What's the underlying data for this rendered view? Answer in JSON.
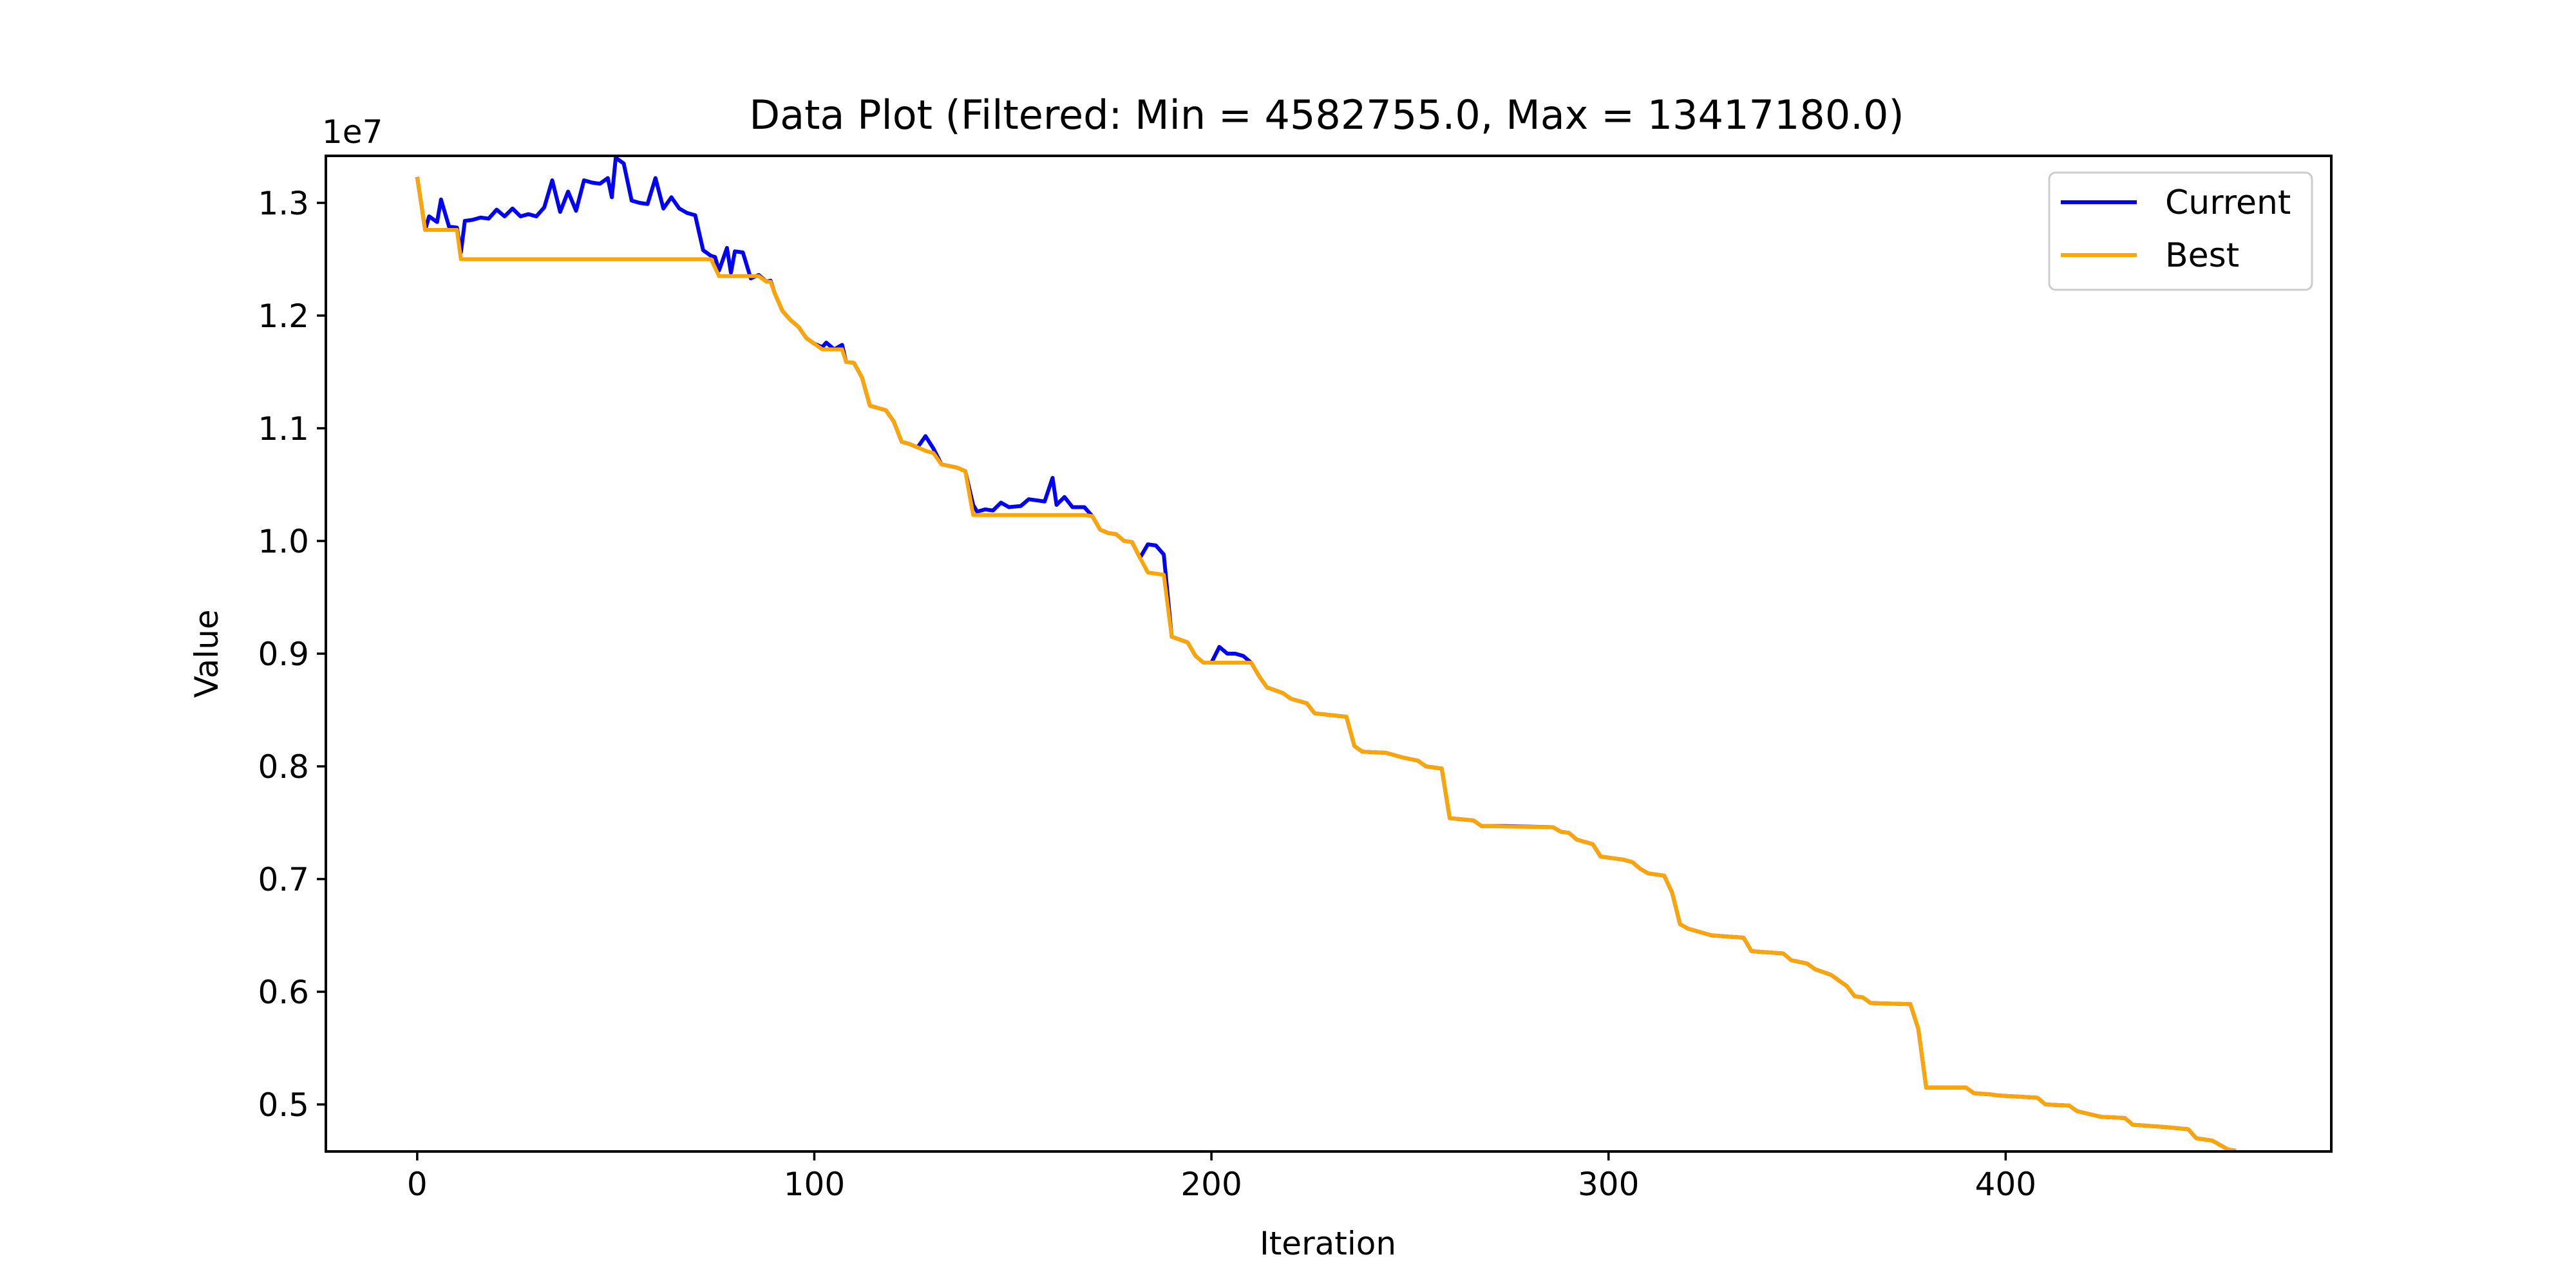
{
  "chart_data": {
    "type": "line",
    "title": "Data Plot (Filtered: Min = 4582755.0, Max = 13417180.0)",
    "xlabel": "Iteration",
    "ylabel": "Value",
    "y_offset_label": "1e7",
    "xlim": [
      -23,
      482
    ],
    "ylim": [
      4582755,
      13417180
    ],
    "x_ticks": [
      0,
      100,
      200,
      300,
      400
    ],
    "x_tick_labels": [
      "0",
      "100",
      "200",
      "300",
      "400"
    ],
    "y_ticks": [
      5000000,
      6000000,
      7000000,
      8000000,
      9000000,
      10000000,
      11000000,
      12000000,
      13000000
    ],
    "y_tick_labels": [
      "0.5",
      "0.6",
      "0.7",
      "0.8",
      "0.9",
      "1.0",
      "1.1",
      "1.2",
      "1.3"
    ],
    "grid": false,
    "legend_position": "top-right",
    "series": [
      {
        "name": "Current",
        "color": "#0000ff",
        "points": [
          [
            0,
            13230000
          ],
          [
            2,
            12760000
          ],
          [
            3,
            12880000
          ],
          [
            5,
            12830000
          ],
          [
            6,
            13030000
          ],
          [
            8,
            12790000
          ],
          [
            10,
            12780000
          ],
          [
            11,
            12560000
          ],
          [
            12,
            12840000
          ],
          [
            14,
            12850000
          ],
          [
            16,
            12870000
          ],
          [
            18,
            12860000
          ],
          [
            20,
            12940000
          ],
          [
            22,
            12880000
          ],
          [
            24,
            12950000
          ],
          [
            26,
            12880000
          ],
          [
            28,
            12900000
          ],
          [
            30,
            12880000
          ],
          [
            32,
            12960000
          ],
          [
            34,
            13200000
          ],
          [
            36,
            12920000
          ],
          [
            38,
            13100000
          ],
          [
            40,
            12930000
          ],
          [
            42,
            13200000
          ],
          [
            44,
            13180000
          ],
          [
            46,
            13170000
          ],
          [
            48,
            13220000
          ],
          [
            49,
            13050000
          ],
          [
            50,
            13400000
          ],
          [
            52,
            13350000
          ],
          [
            54,
            13020000
          ],
          [
            56,
            13000000
          ],
          [
            58,
            12990000
          ],
          [
            60,
            13220000
          ],
          [
            62,
            12950000
          ],
          [
            64,
            13050000
          ],
          [
            66,
            12950000
          ],
          [
            68,
            12910000
          ],
          [
            70,
            12890000
          ],
          [
            72,
            12580000
          ],
          [
            74,
            12530000
          ],
          [
            75,
            12520000
          ],
          [
            76,
            12400000
          ],
          [
            78,
            12600000
          ],
          [
            79,
            12380000
          ],
          [
            80,
            12570000
          ],
          [
            82,
            12560000
          ],
          [
            84,
            12330000
          ],
          [
            86,
            12360000
          ],
          [
            88,
            12300000
          ],
          [
            89,
            12310000
          ],
          [
            90,
            12200000
          ],
          [
            92,
            12040000
          ],
          [
            94,
            11960000
          ],
          [
            96,
            11900000
          ],
          [
            98,
            11800000
          ],
          [
            100,
            11750000
          ],
          [
            102,
            11720000
          ],
          [
            103,
            11760000
          ],
          [
            105,
            11700000
          ],
          [
            107,
            11740000
          ],
          [
            108,
            11590000
          ],
          [
            110,
            11580000
          ],
          [
            112,
            11450000
          ],
          [
            114,
            11200000
          ],
          [
            118,
            11160000
          ],
          [
            120,
            11060000
          ],
          [
            122,
            10880000
          ],
          [
            124,
            10860000
          ],
          [
            126,
            10830000
          ],
          [
            128,
            10930000
          ],
          [
            130,
            10820000
          ],
          [
            132,
            10680000
          ],
          [
            136,
            10650000
          ],
          [
            138,
            10620000
          ],
          [
            140,
            10320000
          ],
          [
            141,
            10260000
          ],
          [
            143,
            10280000
          ],
          [
            145,
            10270000
          ],
          [
            147,
            10340000
          ],
          [
            149,
            10300000
          ],
          [
            152,
            10310000
          ],
          [
            154,
            10370000
          ],
          [
            158,
            10350000
          ],
          [
            160,
            10560000
          ],
          [
            161,
            10320000
          ],
          [
            163,
            10390000
          ],
          [
            165,
            10300000
          ],
          [
            168,
            10300000
          ],
          [
            170,
            10220000
          ],
          [
            172,
            10100000
          ],
          [
            174,
            10070000
          ],
          [
            176,
            10060000
          ],
          [
            178,
            10000000
          ],
          [
            180,
            9990000
          ],
          [
            182,
            9850000
          ],
          [
            184,
            9970000
          ],
          [
            186,
            9960000
          ],
          [
            188,
            9880000
          ],
          [
            190,
            9150000
          ],
          [
            194,
            9100000
          ],
          [
            196,
            8980000
          ],
          [
            198,
            8920000
          ],
          [
            200,
            8920000
          ],
          [
            202,
            9060000
          ],
          [
            204,
            9000000
          ],
          [
            206,
            9000000
          ],
          [
            208,
            8980000
          ],
          [
            210,
            8920000
          ],
          [
            212,
            8800000
          ],
          [
            214,
            8700000
          ],
          [
            218,
            8650000
          ],
          [
            220,
            8600000
          ],
          [
            224,
            8560000
          ],
          [
            226,
            8470000
          ],
          [
            234,
            8440000
          ],
          [
            236,
            8180000
          ],
          [
            238,
            8130000
          ],
          [
            244,
            8120000
          ],
          [
            248,
            8080000
          ],
          [
            252,
            8050000
          ],
          [
            254,
            8000000
          ],
          [
            258,
            7980000
          ],
          [
            260,
            7540000
          ],
          [
            266,
            7520000
          ],
          [
            268,
            7470000
          ],
          [
            274,
            7470000
          ],
          [
            286,
            7460000
          ],
          [
            288,
            7420000
          ],
          [
            290,
            7410000
          ],
          [
            292,
            7350000
          ],
          [
            296,
            7310000
          ],
          [
            298,
            7200000
          ],
          [
            304,
            7170000
          ],
          [
            306,
            7150000
          ],
          [
            308,
            7090000
          ],
          [
            310,
            7050000
          ],
          [
            314,
            7030000
          ],
          [
            316,
            6880000
          ],
          [
            318,
            6600000
          ],
          [
            320,
            6560000
          ],
          [
            324,
            6520000
          ],
          [
            326,
            6500000
          ],
          [
            330,
            6490000
          ],
          [
            334,
            6480000
          ],
          [
            336,
            6360000
          ],
          [
            344,
            6340000
          ],
          [
            346,
            6280000
          ],
          [
            350,
            6250000
          ],
          [
            352,
            6200000
          ],
          [
            356,
            6150000
          ],
          [
            358,
            6100000
          ],
          [
            360,
            6050000
          ],
          [
            362,
            5960000
          ],
          [
            364,
            5950000
          ],
          [
            366,
            5900000
          ],
          [
            376,
            5890000
          ],
          [
            378,
            5670000
          ],
          [
            380,
            5150000
          ],
          [
            390,
            5150000
          ],
          [
            392,
            5100000
          ],
          [
            396,
            5090000
          ],
          [
            398,
            5080000
          ],
          [
            408,
            5060000
          ],
          [
            410,
            5000000
          ],
          [
            416,
            4990000
          ],
          [
            418,
            4940000
          ],
          [
            424,
            4890000
          ],
          [
            430,
            4880000
          ],
          [
            432,
            4820000
          ],
          [
            440,
            4800000
          ],
          [
            446,
            4780000
          ],
          [
            448,
            4700000
          ],
          [
            452,
            4680000
          ],
          [
            456,
            4600000
          ],
          [
            458,
            4590000
          ]
        ]
      },
      {
        "name": "Best",
        "color": "#ffa500",
        "points": [
          [
            0,
            13230000
          ],
          [
            2,
            12760000
          ],
          [
            10,
            12760000
          ],
          [
            11,
            12500000
          ],
          [
            74,
            12500000
          ],
          [
            76,
            12350000
          ],
          [
            86,
            12350000
          ],
          [
            88,
            12300000
          ],
          [
            89,
            12300000
          ],
          [
            90,
            12200000
          ],
          [
            92,
            12040000
          ],
          [
            94,
            11960000
          ],
          [
            96,
            11900000
          ],
          [
            98,
            11800000
          ],
          [
            100,
            11750000
          ],
          [
            102,
            11700000
          ],
          [
            107,
            11700000
          ],
          [
            108,
            11590000
          ],
          [
            110,
            11580000
          ],
          [
            112,
            11450000
          ],
          [
            114,
            11200000
          ],
          [
            118,
            11160000
          ],
          [
            120,
            11060000
          ],
          [
            122,
            10880000
          ],
          [
            124,
            10860000
          ],
          [
            126,
            10830000
          ],
          [
            128,
            10800000
          ],
          [
            130,
            10780000
          ],
          [
            132,
            10680000
          ],
          [
            136,
            10650000
          ],
          [
            138,
            10620000
          ],
          [
            140,
            10230000
          ],
          [
            168,
            10230000
          ],
          [
            170,
            10220000
          ],
          [
            172,
            10100000
          ],
          [
            174,
            10070000
          ],
          [
            176,
            10060000
          ],
          [
            178,
            10000000
          ],
          [
            180,
            9990000
          ],
          [
            182,
            9850000
          ],
          [
            184,
            9720000
          ],
          [
            188,
            9700000
          ],
          [
            190,
            9150000
          ],
          [
            194,
            9100000
          ],
          [
            196,
            8980000
          ],
          [
            198,
            8920000
          ],
          [
            210,
            8920000
          ],
          [
            212,
            8800000
          ],
          [
            214,
            8700000
          ],
          [
            218,
            8650000
          ],
          [
            220,
            8600000
          ],
          [
            224,
            8560000
          ],
          [
            226,
            8470000
          ],
          [
            234,
            8440000
          ],
          [
            236,
            8180000
          ],
          [
            238,
            8130000
          ],
          [
            244,
            8120000
          ],
          [
            248,
            8080000
          ],
          [
            252,
            8050000
          ],
          [
            254,
            8000000
          ],
          [
            258,
            7980000
          ],
          [
            260,
            7540000
          ],
          [
            266,
            7520000
          ],
          [
            268,
            7470000
          ],
          [
            286,
            7460000
          ],
          [
            288,
            7420000
          ],
          [
            290,
            7410000
          ],
          [
            292,
            7350000
          ],
          [
            296,
            7310000
          ],
          [
            298,
            7200000
          ],
          [
            304,
            7170000
          ],
          [
            306,
            7150000
          ],
          [
            308,
            7090000
          ],
          [
            310,
            7050000
          ],
          [
            314,
            7030000
          ],
          [
            316,
            6880000
          ],
          [
            318,
            6600000
          ],
          [
            320,
            6560000
          ],
          [
            324,
            6520000
          ],
          [
            326,
            6500000
          ],
          [
            330,
            6490000
          ],
          [
            334,
            6480000
          ],
          [
            336,
            6360000
          ],
          [
            344,
            6340000
          ],
          [
            346,
            6280000
          ],
          [
            350,
            6250000
          ],
          [
            352,
            6200000
          ],
          [
            356,
            6150000
          ],
          [
            358,
            6100000
          ],
          [
            360,
            6050000
          ],
          [
            362,
            5960000
          ],
          [
            364,
            5950000
          ],
          [
            366,
            5900000
          ],
          [
            376,
            5890000
          ],
          [
            378,
            5670000
          ],
          [
            380,
            5150000
          ],
          [
            390,
            5150000
          ],
          [
            392,
            5100000
          ],
          [
            396,
            5090000
          ],
          [
            398,
            5080000
          ],
          [
            408,
            5060000
          ],
          [
            410,
            5000000
          ],
          [
            416,
            4990000
          ],
          [
            418,
            4940000
          ],
          [
            424,
            4890000
          ],
          [
            430,
            4880000
          ],
          [
            432,
            4820000
          ],
          [
            440,
            4800000
          ],
          [
            446,
            4780000
          ],
          [
            448,
            4700000
          ],
          [
            452,
            4680000
          ],
          [
            456,
            4600000
          ],
          [
            458,
            4590000
          ]
        ]
      }
    ]
  }
}
